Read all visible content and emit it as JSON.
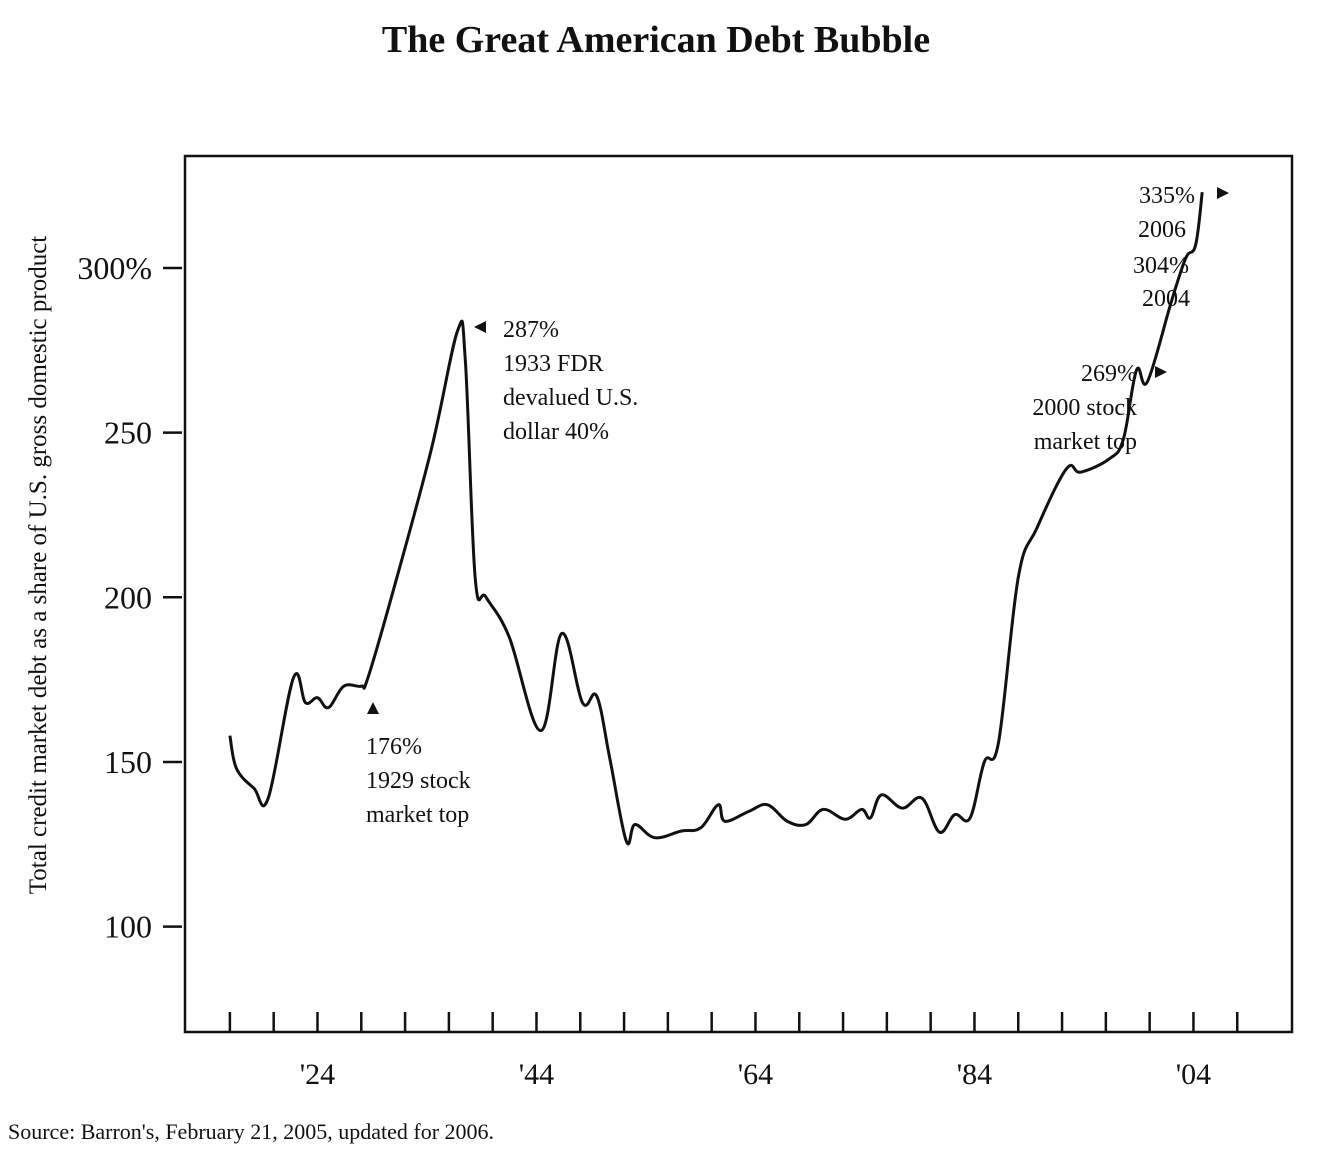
{
  "chart_data": {
    "type": "line",
    "title": "The Great American Debt Bubble",
    "xlabel": "",
    "ylabel": "Total credit market debt as a share of U.S. gross domestic product",
    "ylim": [
      68,
      334
    ],
    "xlim": [
      1911.9,
      2013
    ],
    "yticks": [
      {
        "value": 300,
        "label": "300%"
      },
      {
        "value": 250,
        "label": "250"
      },
      {
        "value": 200,
        "label": "200"
      },
      {
        "value": 150,
        "label": "150"
      },
      {
        "value": 100,
        "label": "100"
      }
    ],
    "xtick_start": 1916,
    "xtick_step": 4,
    "xtick_count": 24,
    "xtick_labels": [
      {
        "value": 1924,
        "label": "'24"
      },
      {
        "value": 1944,
        "label": "'44"
      },
      {
        "value": 1964,
        "label": "'64"
      },
      {
        "value": 1984,
        "label": "'84"
      },
      {
        "value": 2004,
        "label": "'04"
      }
    ],
    "grid": false,
    "series": [
      {
        "name": "Debt to GDP",
        "x": [
          1916,
          1916.6,
          1918.2,
          1919.5,
          1921.8,
          1922.9,
          1924,
          1925,
          1926.4,
          1928,
          1928.6,
          1931,
          1934.4,
          1936.8,
          1937.5,
          1938.4,
          1939.4,
          1941.5,
          1944.4,
          1946.3,
          1948.2,
          1949.5,
          1950.7,
          1952.2,
          1953,
          1954.8,
          1957.2,
          1959,
          1960.6,
          1961.2,
          1963.4,
          1965.1,
          1966.9,
          1968.6,
          1970.2,
          1972.2,
          1973.7,
          1974.5,
          1975.5,
          1977.4,
          1979.2,
          1980.8,
          1982.2,
          1983.6,
          1984.9,
          1986.2,
          1988,
          1989.7,
          1992.4,
          1993.7,
          1996.3,
          1997.6,
          1998.8,
          1999.8,
          2002,
          2003.3,
          2004.2,
          2004.8
        ],
        "values": [
          158,
          148,
          142,
          139,
          175.5,
          168,
          169.5,
          166.5,
          173,
          173,
          175.5,
          203,
          245,
          281,
          272,
          206,
          200,
          188,
          159.5,
          189,
          168,
          170,
          151,
          126,
          131,
          127,
          129,
          130,
          137,
          132,
          135,
          137,
          132,
          131,
          135.6,
          132.6,
          135.6,
          133,
          140,
          136,
          139,
          128.7,
          134,
          133,
          150,
          156,
          206,
          221,
          239,
          238,
          242,
          248,
          269,
          265.5,
          290,
          303,
          307,
          323
        ]
      }
    ],
    "annotations": [
      {
        "lines": [
          "287%",
          "1933 FDR",
          "devalued U.S.",
          "dollar 40%"
        ],
        "marker": "left-arrow"
      },
      {
        "lines": [
          "176%",
          "1929 stock",
          "market top"
        ],
        "marker": "up-arrow"
      },
      {
        "lines": [
          "269%",
          "2000 stock",
          "market top"
        ],
        "marker": "right-arrow"
      },
      {
        "lines": [
          "335%",
          "2006"
        ],
        "marker": "right-arrow"
      },
      {
        "lines": [
          "304%",
          "2004"
        ],
        "marker": "right-arrow"
      }
    ],
    "source": "Source: Barron's, February 21, 2005, updated for 2006."
  }
}
